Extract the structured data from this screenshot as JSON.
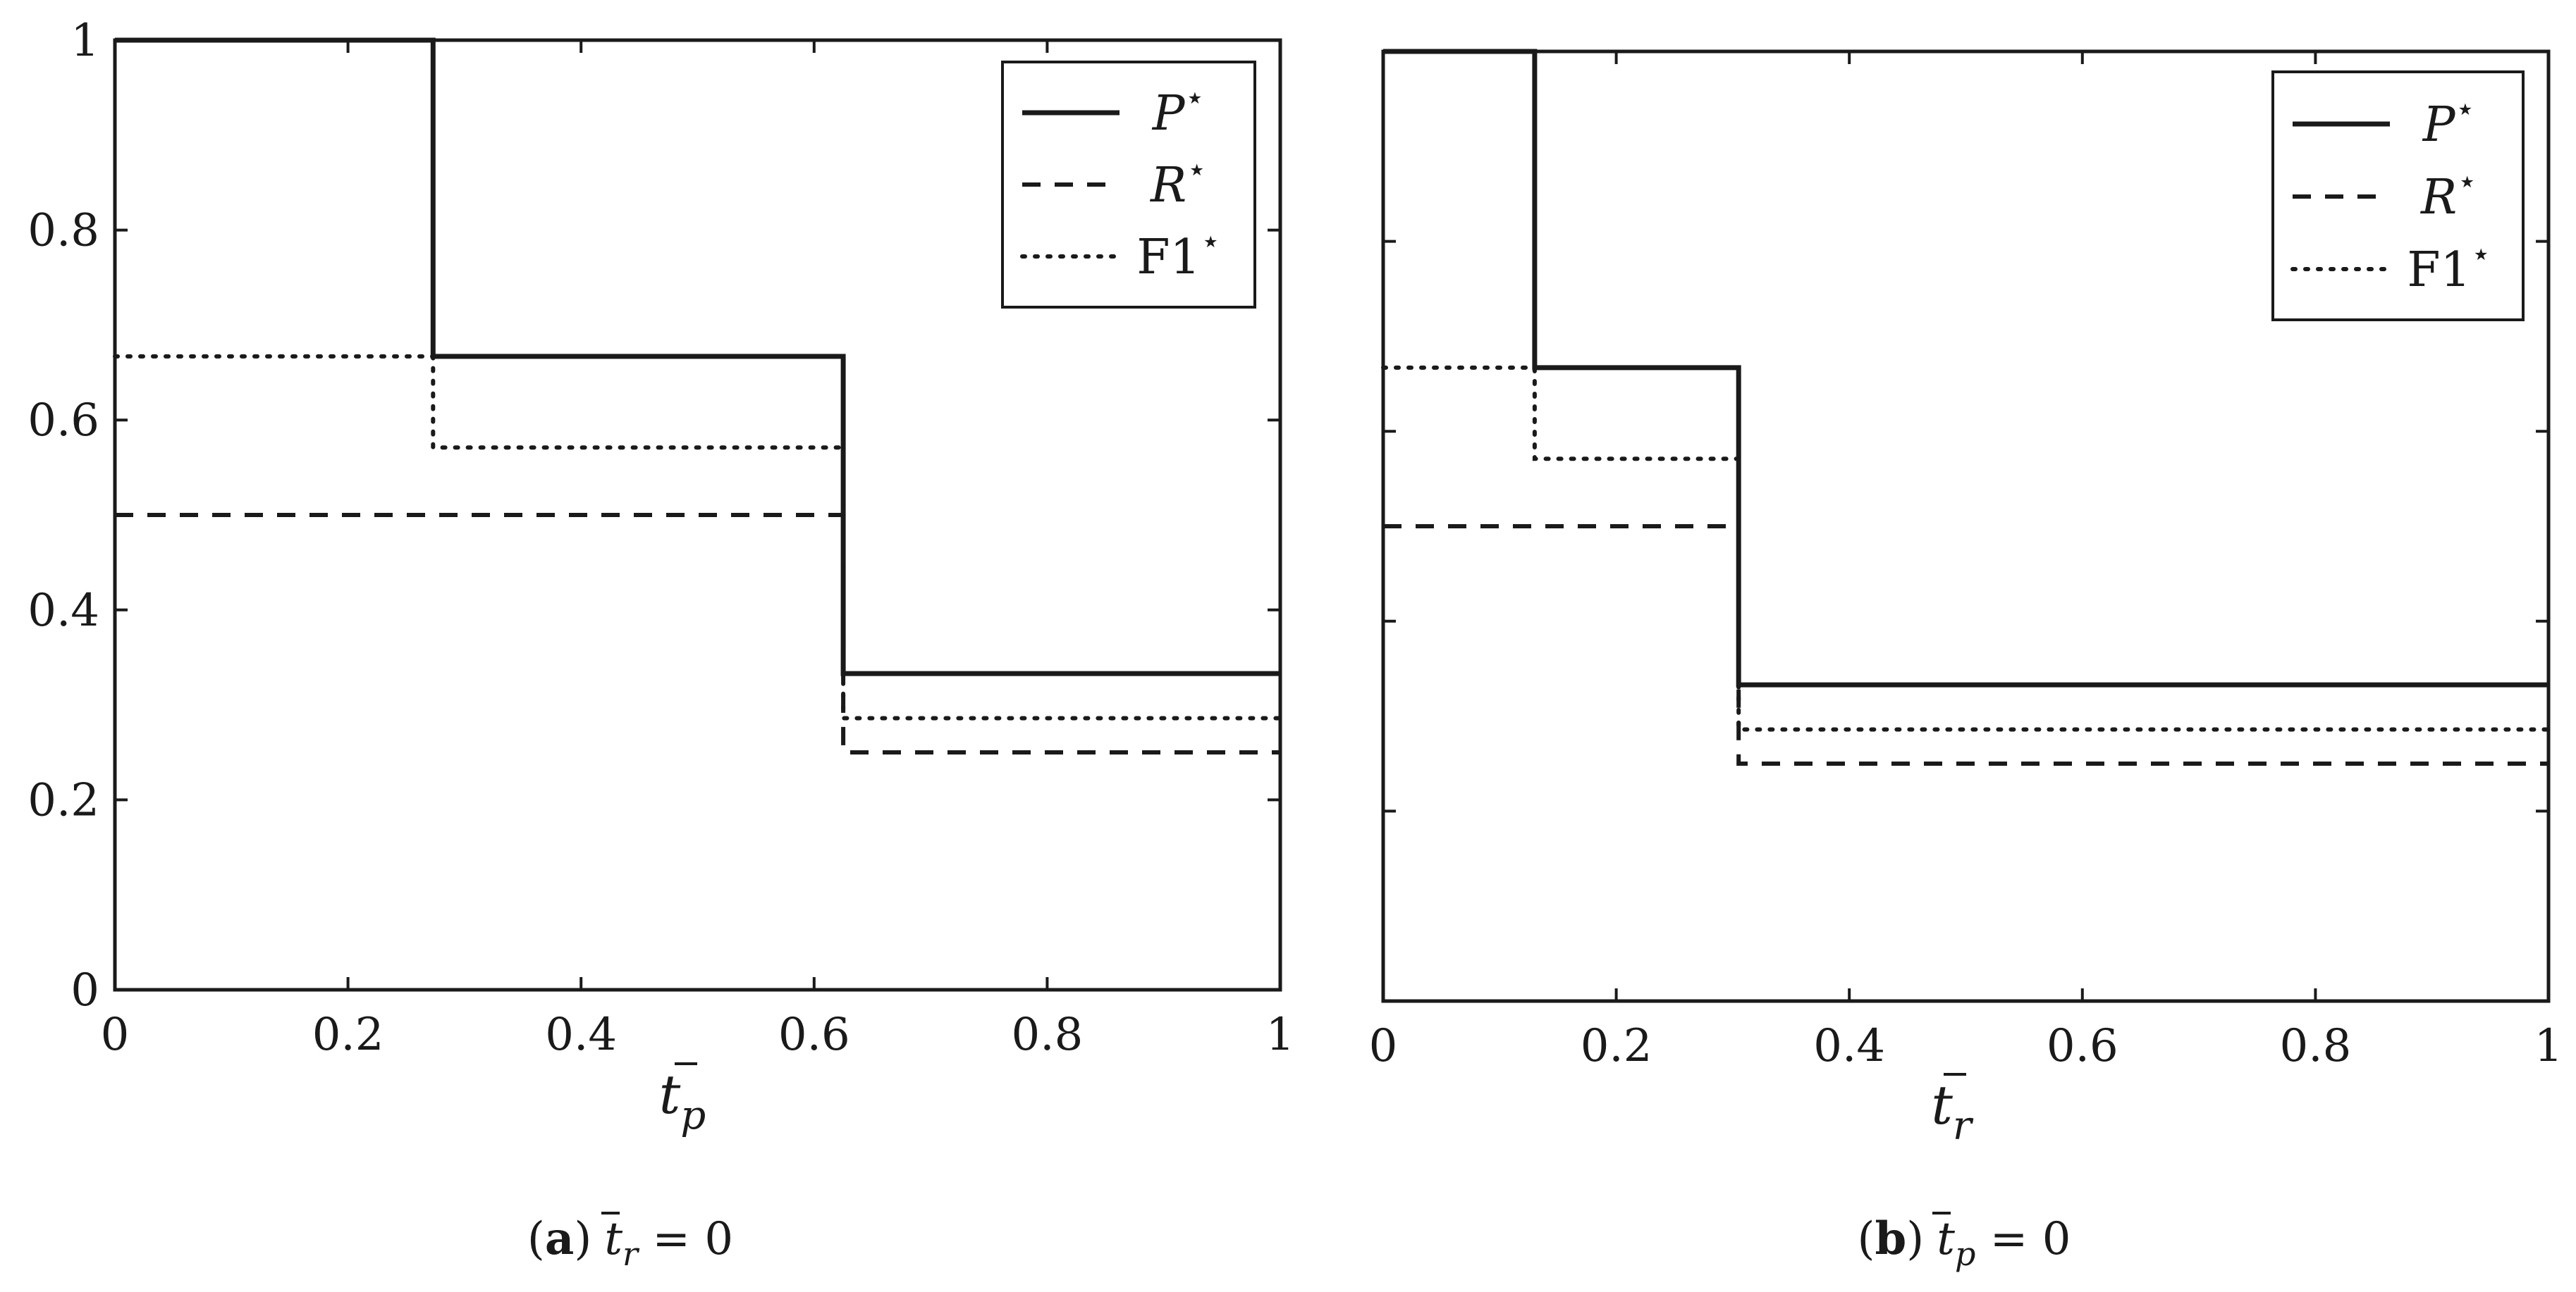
{
  "figure": {
    "panels": [
      {
        "id": "a",
        "caption": {
          "open": "(",
          "letter": "a",
          "close": ")",
          "math_var": "t",
          "math_sub": "r",
          "math_rel": " = 0"
        },
        "xlabel": {
          "var": "t",
          "sub": "p"
        },
        "show_y_tick_labels": true
      },
      {
        "id": "b",
        "caption": {
          "open": "(",
          "letter": "b",
          "close": ")",
          "math_var": "t",
          "math_sub": "p",
          "math_rel": " = 0"
        },
        "xlabel": {
          "var": "t",
          "sub": "r"
        },
        "show_y_tick_labels": false
      }
    ],
    "legend_labels": {
      "p": "P",
      "r": "R",
      "f1": "F1",
      "star": "⋆"
    },
    "colors": {
      "line": "#1a1a1a",
      "frame": "#1a1a1a"
    }
  },
  "chart_data": [
    {
      "type": "line",
      "step": true,
      "xlim": [
        0,
        1
      ],
      "ylim": [
        0,
        1
      ],
      "x_ticks": [
        "0",
        "0.2",
        "0.4",
        "0.6",
        "0.8",
        "1"
      ],
      "y_ticks": [
        "0",
        "0.2",
        "0.4",
        "0.6",
        "0.8",
        "1"
      ],
      "legend_position": "top-right",
      "series": [
        {
          "key": "p",
          "style": "solid",
          "x": [
            0,
            0.273,
            0.273,
            0.625,
            0.625,
            1
          ],
          "y": [
            1,
            1,
            0.667,
            0.667,
            0.333,
            0.333
          ]
        },
        {
          "key": "r",
          "style": "dashed",
          "x": [
            0,
            0.625,
            0.625,
            1
          ],
          "y": [
            0.5,
            0.5,
            0.25,
            0.25
          ]
        },
        {
          "key": "f1",
          "style": "dotted",
          "x": [
            0,
            0.273,
            0.273,
            0.625,
            0.625,
            1
          ],
          "y": [
            0.667,
            0.667,
            0.571,
            0.571,
            0.286,
            0.286
          ]
        }
      ]
    },
    {
      "type": "line",
      "step": true,
      "xlim": [
        0,
        1
      ],
      "ylim": [
        0,
        1
      ],
      "x_ticks": [
        "0",
        "0.2",
        "0.4",
        "0.6",
        "0.8",
        "1"
      ],
      "y_ticks": [],
      "legend_position": "top-right",
      "series": [
        {
          "key": "p",
          "style": "solid",
          "x": [
            0,
            0.13,
            0.13,
            0.305,
            0.305,
            1
          ],
          "y": [
            1,
            1,
            0.667,
            0.667,
            0.333,
            0.333
          ]
        },
        {
          "key": "r",
          "style": "dashed",
          "x": [
            0,
            0.305,
            0.305,
            1
          ],
          "y": [
            0.5,
            0.5,
            0.25,
            0.25
          ]
        },
        {
          "key": "f1",
          "style": "dotted",
          "x": [
            0,
            0.13,
            0.13,
            0.305,
            0.305,
            1
          ],
          "y": [
            0.667,
            0.667,
            0.571,
            0.571,
            0.286,
            0.286
          ]
        }
      ]
    }
  ]
}
